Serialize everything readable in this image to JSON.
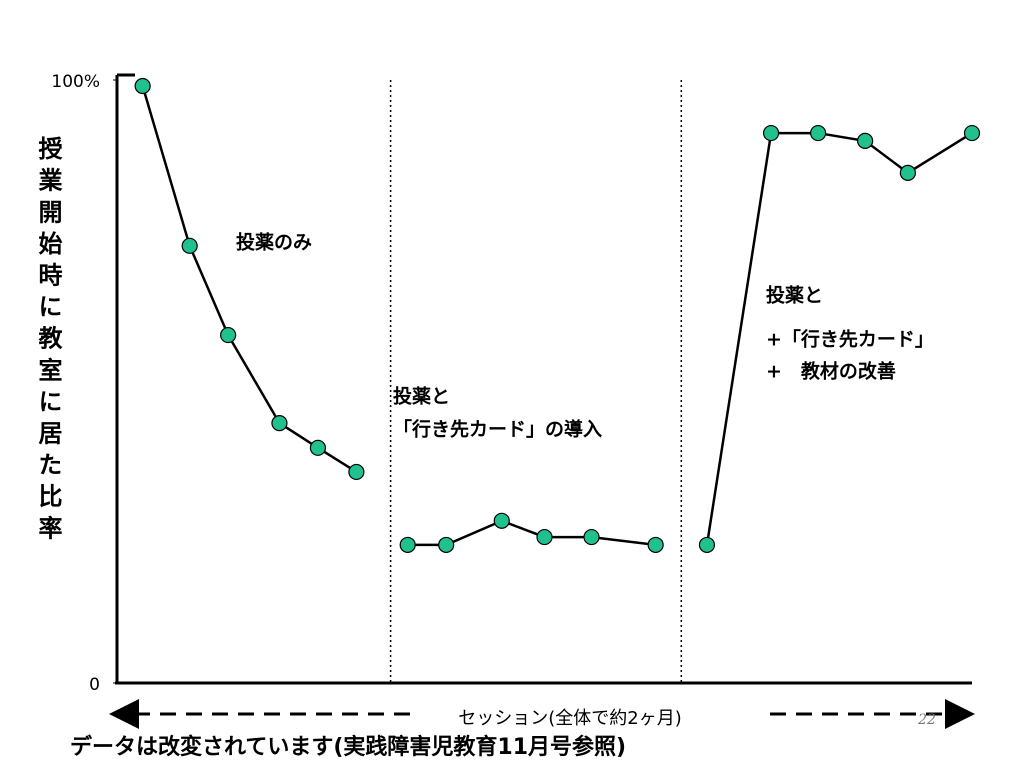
{
  "chart_data": {
    "type": "line",
    "ylabel": "授業開始時に教室に居た比率",
    "xlabel": "セッション(全体で約2ヶ月)",
    "footer": "データは改変されています(実践障害児教育11月号参照)",
    "page_number": "22",
    "xlim": [
      0,
      20
    ],
    "ylim": [
      0,
      100
    ],
    "yticks": [
      0,
      {
        "value": 100,
        "label": "100%"
      }
    ],
    "phase_dividers": [
      6.4,
      13.2
    ],
    "marker_color": "#20c08f",
    "line_color": "#000000",
    "series": [
      {
        "x": [
          0.6,
          1.7,
          2.6,
          3.8,
          4.7,
          5.6
        ],
        "values": [
          99,
          72.5,
          57.7,
          43.1,
          39,
          35
        ]
      },
      {
        "x": [
          6.8,
          7.7,
          9.0,
          10.0,
          11.1,
          12.6
        ],
        "values": [
          22.9,
          22.9,
          26.9,
          24.2,
          24.2,
          22.9
        ]
      },
      {
        "x": [
          13.8,
          15.3,
          16.4,
          17.5,
          18.5,
          20.0
        ],
        "values": [
          22.9,
          91.2,
          91.2,
          89.9,
          84.6,
          91.2
        ]
      }
    ],
    "annotations": [
      {
        "lines": [
          "投薬のみ"
        ]
      },
      {
        "lines": [
          "投薬と",
          "「行き先カード」の導入"
        ]
      },
      {
        "lines": [
          "投薬と"
        ]
      },
      {
        "lines": [
          "+「行き先カード」",
          "+　教材の改善"
        ]
      }
    ]
  }
}
